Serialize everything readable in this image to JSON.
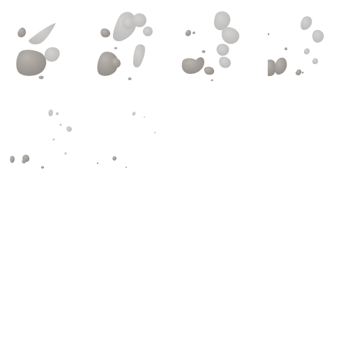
{
  "sprite_sheet": {
    "grid": "4x4",
    "frame_count": 16,
    "visible_frames": 6,
    "colors": {
      "background": "#ffffff",
      "dark_blob": "#9e9892",
      "dark_blob_edge": "#b7b2ad",
      "light_blob": "#c7c6c5",
      "light_blob_edge": "#dcdbda",
      "glow": "#f1f0ef"
    }
  }
}
